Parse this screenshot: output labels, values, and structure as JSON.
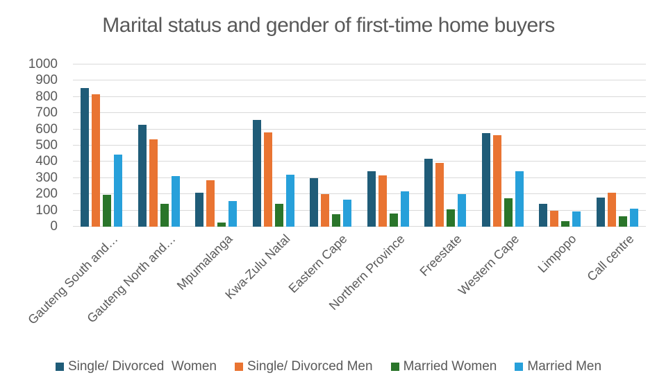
{
  "chart_data": {
    "type": "bar",
    "title": "Marital status and gender of first-time home buyers",
    "categories": [
      "Gauteng South and…",
      "Gauteng North and…",
      "Mpumalanga",
      "Kwa-Zulu Natal",
      "Eastern Cape",
      "Northern Province",
      "Freestate",
      "Western Cape",
      "Limpopo",
      "Call centre"
    ],
    "series": [
      {
        "name": "Single/ Divorced  Women",
        "color": "#1F5C78",
        "values": [
          855,
          630,
          210,
          660,
          300,
          340,
          420,
          575,
          140,
          180
        ]
      },
      {
        "name": "Single/ Divorced Men",
        "color": "#E97432",
        "values": [
          815,
          540,
          285,
          580,
          200,
          315,
          395,
          565,
          100,
          210
        ]
      },
      {
        "name": "Married Women",
        "color": "#2A752A",
        "values": [
          195,
          140,
          25,
          140,
          75,
          80,
          105,
          175,
          35,
          65
        ]
      },
      {
        "name": "Married Men",
        "color": "#27A0DA",
        "values": [
          445,
          310,
          160,
          320,
          165,
          220,
          200,
          340,
          95,
          110
        ]
      }
    ],
    "xlabel": "",
    "ylabel": "",
    "ylim": [
      0,
      1000
    ],
    "ytick_step": 100,
    "grid": true,
    "gridline_color": "#D9D9D9",
    "text_color": "#595959",
    "legend_position": "bottom"
  }
}
